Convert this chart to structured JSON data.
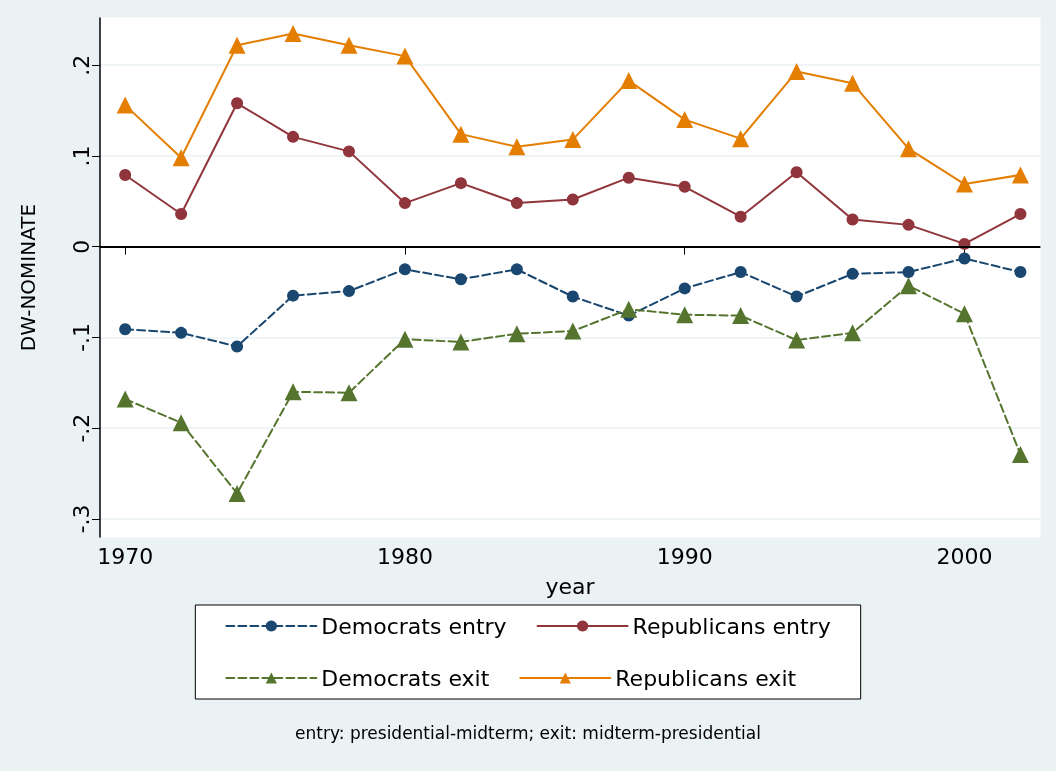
{
  "chart_data": {
    "type": "line",
    "xlabel": "year",
    "ylabel": "DW-NOMINATE",
    "annotations": [
      "entry: presidential-midterm; exit: midterm-presidential"
    ],
    "x": [
      1970,
      1972,
      1974,
      1976,
      1978,
      1980,
      1982,
      1984,
      1986,
      1988,
      1990,
      1992,
      1994,
      1996,
      1998,
      2000,
      2002
    ],
    "series": [
      {
        "name": "Democrats entry",
        "color": "#1a476f",
        "marker": "circle",
        "line_style": "dashed",
        "values": [
          -0.091,
          -0.095,
          -0.11,
          -0.054,
          -0.049,
          -0.025,
          -0.036,
          -0.025,
          -0.055,
          -0.076,
          -0.046,
          -0.028,
          -0.055,
          -0.03,
          -0.028,
          -0.013,
          -0.028
        ]
      },
      {
        "name": "Republicans entry",
        "color": "#90353b",
        "marker": "circle",
        "line_style": "solid",
        "values": [
          0.079,
          0.036,
          0.158,
          0.121,
          0.105,
          0.048,
          0.07,
          0.048,
          0.052,
          0.076,
          0.066,
          0.033,
          0.082,
          0.03,
          0.024,
          0.003,
          0.036
        ]
      },
      {
        "name": "Democrats exit",
        "color": "#55752f",
        "marker": "triangle",
        "line_style": "dashed",
        "values": [
          -0.168,
          -0.194,
          -0.272,
          -0.16,
          -0.161,
          -0.102,
          -0.105,
          -0.096,
          -0.093,
          -0.069,
          -0.075,
          -0.076,
          -0.103,
          -0.095,
          -0.043,
          -0.074,
          -0.229
        ]
      },
      {
        "name": "Republicans exit",
        "color": "#e37e00",
        "marker": "triangle",
        "line_style": "solid",
        "values": [
          0.156,
          0.098,
          0.222,
          0.235,
          0.222,
          0.21,
          0.124,
          0.11,
          0.118,
          0.183,
          0.14,
          0.119,
          0.193,
          0.18,
          0.108,
          0.069,
          0.079
        ]
      }
    ],
    "xlim": [
      1969.1,
      2002.7
    ],
    "xticks": [
      1970,
      1980,
      1990,
      2000
    ],
    "ylim": [
      -0.32,
      0.252
    ],
    "yticks": [
      {
        "value": -0.3,
        "label": "-.3"
      },
      {
        "value": -0.2,
        "label": "-.2"
      },
      {
        "value": -0.1,
        "label": "-.1"
      },
      {
        "value": 0,
        "label": "0"
      },
      {
        "value": 0.1,
        "label": ".1"
      },
      {
        "value": 0.2,
        "label": ".2"
      }
    ],
    "ref_lines": [
      {
        "axis": "y",
        "value": 0,
        "label": null,
        "color": "#000000",
        "line_style": "solid"
      }
    ],
    "grid": "y",
    "legend": "bottom"
  }
}
